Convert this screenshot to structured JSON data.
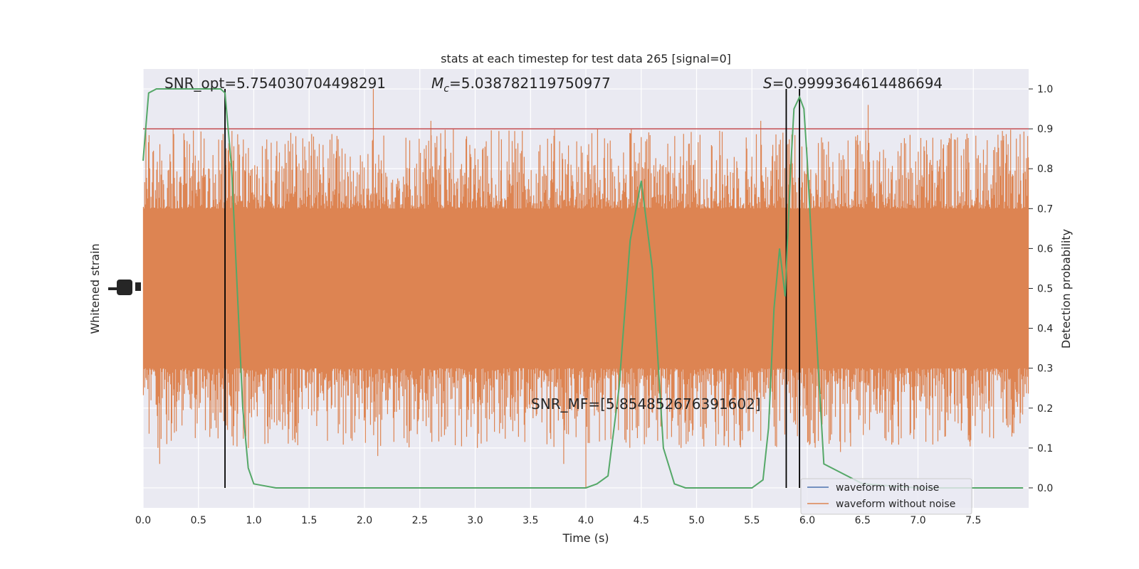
{
  "chart_data": {
    "type": "line",
    "title": "stats at each timestep for test data 265 [signal=0]",
    "xlabel": "Time (s)",
    "ylabel_left": "Whitened strain",
    "ylabel_right": "Detection probability",
    "xlim": [
      0.0,
      8.0
    ],
    "ylim_right": [
      -0.05,
      1.05
    ],
    "x_ticks": [
      "0.0",
      "0.5",
      "1.0",
      "1.5",
      "2.0",
      "2.5",
      "3.0",
      "3.5",
      "4.0",
      "4.5",
      "5.0",
      "5.5",
      "6.0",
      "6.5",
      "7.0",
      "7.5"
    ],
    "y_right_ticks": [
      "0.0",
      "0.1",
      "0.2",
      "0.3",
      "0.4",
      "0.5",
      "0.6",
      "0.7",
      "0.8",
      "0.9",
      "1.0"
    ],
    "grid": true,
    "legend_position": "lower-right",
    "annotations": {
      "snr_opt": "SNR_opt=5.754030704498291",
      "mc_symbol": "M",
      "mc_subscript": "c",
      "mc_value": "=5.038782119750977",
      "s_symbol": "S",
      "s_value": "=0.9999364614486694",
      "snr_mf": "SNR_MF=[5.854852676391602]"
    },
    "threshold": {
      "value": 0.9,
      "color": "#c44e52"
    },
    "vertical_lines": [
      0.74,
      5.81,
      5.93
    ],
    "series": [
      {
        "name": "waveform with noise",
        "color": "#4c72b0",
        "values": []
      },
      {
        "name": "waveform without noise",
        "color": "#dd8452",
        "visual_band": [
          0.3,
          0.7
        ],
        "spikes_reach": [
          0.0,
          1.0
        ]
      },
      {
        "color": "#55a868",
        "x": [
          0.0,
          0.05,
          0.12,
          0.3,
          0.5,
          0.7,
          0.74,
          0.8,
          0.85,
          0.9,
          0.95,
          1.0,
          1.2,
          1.5,
          2.0,
          2.2,
          2.5,
          3.0,
          3.5,
          4.0,
          4.1,
          4.2,
          4.3,
          4.4,
          4.5,
          4.6,
          4.7,
          4.8,
          4.9,
          5.0,
          5.5,
          5.6,
          5.65,
          5.7,
          5.75,
          5.8,
          5.85,
          5.88,
          5.93,
          5.97,
          6.0,
          6.05,
          6.1,
          6.15,
          6.5,
          7.0,
          7.5,
          7.9,
          7.95
        ],
        "values": [
          0.82,
          0.99,
          1.0,
          1.0,
          1.0,
          1.0,
          0.99,
          0.8,
          0.5,
          0.2,
          0.05,
          0.01,
          0.0,
          0.0,
          0.0,
          0.0,
          0.0,
          0.0,
          0.0,
          0.0,
          0.01,
          0.03,
          0.25,
          0.62,
          0.77,
          0.55,
          0.1,
          0.01,
          0.0,
          0.0,
          0.0,
          0.02,
          0.15,
          0.45,
          0.6,
          0.48,
          0.8,
          0.95,
          0.98,
          0.95,
          0.82,
          0.55,
          0.3,
          0.06,
          0.01,
          0.0,
          0.0,
          0.0,
          0.0
        ]
      }
    ]
  }
}
